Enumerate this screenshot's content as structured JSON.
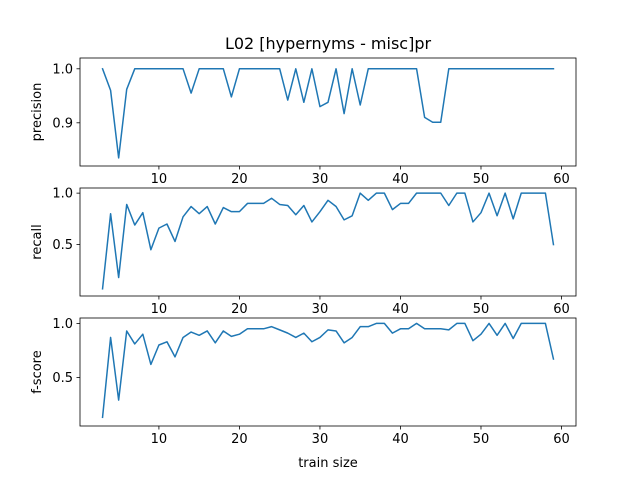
{
  "figure": {
    "title": "L02 [hypernyms - misc]pr",
    "xlabel": "train size",
    "line_color": "#1f77b4"
  },
  "chart_data": [
    {
      "type": "line",
      "ylabel": "precision",
      "xlim": [
        0.2,
        61.8
      ],
      "ylim": [
        0.82,
        1.02
      ],
      "xticks": [
        10,
        20,
        30,
        40,
        50,
        60
      ],
      "yticks": [
        0.9,
        1.0
      ],
      "ytick_labels": [
        "0.9",
        "1.0"
      ],
      "x": [
        3,
        4,
        5,
        6,
        7,
        8,
        9,
        10,
        11,
        12,
        13,
        14,
        15,
        16,
        17,
        18,
        19,
        20,
        21,
        22,
        23,
        24,
        25,
        26,
        27,
        28,
        29,
        30,
        31,
        32,
        33,
        34,
        35,
        36,
        37,
        38,
        39,
        40,
        41,
        42,
        43,
        44,
        45,
        46,
        47,
        48,
        49,
        50,
        51,
        52,
        53,
        54,
        55,
        56,
        57,
        58,
        59
      ],
      "y": [
        1.0,
        0.96,
        0.835,
        0.962,
        1.0,
        1.0,
        1.0,
        1.0,
        1.0,
        1.0,
        1.0,
        0.955,
        1.0,
        1.0,
        1.0,
        1.0,
        0.948,
        1.0,
        1.0,
        1.0,
        1.0,
        1.0,
        1.0,
        0.942,
        1.0,
        0.938,
        1.0,
        0.93,
        0.938,
        1.0,
        0.917,
        1.0,
        0.933,
        1.0,
        1.0,
        1.0,
        1.0,
        1.0,
        1.0,
        1.0,
        0.91,
        0.901,
        0.901,
        1.0,
        1.0,
        1.0,
        1.0,
        1.0,
        1.0,
        1.0,
        1.0,
        1.0,
        1.0,
        1.0,
        1.0,
        1.0,
        1.0
      ]
    },
    {
      "type": "line",
      "ylabel": "recall",
      "xlim": [
        0.2,
        61.8
      ],
      "ylim": [
        0.0,
        1.05
      ],
      "xticks": [
        10,
        20,
        30,
        40,
        50,
        60
      ],
      "yticks": [
        0.5,
        1.0
      ],
      "ytick_labels": [
        "0.5",
        "1.0"
      ],
      "x": [
        3,
        4,
        5,
        6,
        7,
        8,
        9,
        10,
        11,
        12,
        13,
        14,
        15,
        16,
        17,
        18,
        19,
        20,
        21,
        22,
        23,
        24,
        25,
        26,
        27,
        28,
        29,
        30,
        31,
        32,
        33,
        34,
        35,
        36,
        37,
        38,
        39,
        40,
        41,
        42,
        43,
        44,
        45,
        46,
        47,
        48,
        49,
        50,
        51,
        52,
        53,
        54,
        55,
        56,
        57,
        58,
        59
      ],
      "y": [
        0.07,
        0.8,
        0.18,
        0.89,
        0.69,
        0.81,
        0.45,
        0.66,
        0.7,
        0.53,
        0.77,
        0.87,
        0.8,
        0.87,
        0.7,
        0.86,
        0.82,
        0.82,
        0.9,
        0.9,
        0.9,
        0.95,
        0.89,
        0.88,
        0.79,
        0.88,
        0.72,
        0.82,
        0.93,
        0.87,
        0.74,
        0.78,
        1.0,
        0.93,
        1.0,
        1.0,
        0.84,
        0.9,
        0.9,
        1.0,
        1.0,
        1.0,
        1.0,
        0.88,
        1.0,
        1.0,
        0.72,
        0.81,
        1.0,
        0.78,
        1.0,
        0.75,
        1.0,
        1.0,
        1.0,
        1.0,
        0.5
      ]
    },
    {
      "type": "line",
      "ylabel": "f-score",
      "xlim": [
        0.2,
        61.8
      ],
      "ylim": [
        0.05,
        1.05
      ],
      "xticks": [
        10,
        20,
        30,
        40,
        50,
        60
      ],
      "yticks": [
        0.5,
        1.0
      ],
      "ytick_labels": [
        "0.5",
        "1.0"
      ],
      "x": [
        3,
        4,
        5,
        6,
        7,
        8,
        9,
        10,
        11,
        12,
        13,
        14,
        15,
        16,
        17,
        18,
        19,
        20,
        21,
        22,
        23,
        24,
        25,
        26,
        27,
        28,
        29,
        30,
        31,
        32,
        33,
        34,
        35,
        36,
        37,
        38,
        39,
        40,
        41,
        42,
        43,
        44,
        45,
        46,
        47,
        48,
        49,
        50,
        51,
        52,
        53,
        54,
        55,
        56,
        57,
        58,
        59
      ],
      "y": [
        0.13,
        0.87,
        0.29,
        0.93,
        0.81,
        0.9,
        0.62,
        0.8,
        0.83,
        0.69,
        0.87,
        0.92,
        0.89,
        0.93,
        0.82,
        0.93,
        0.88,
        0.9,
        0.95,
        0.95,
        0.95,
        0.97,
        0.94,
        0.91,
        0.87,
        0.91,
        0.83,
        0.87,
        0.94,
        0.93,
        0.82,
        0.87,
        0.97,
        0.97,
        1.0,
        1.0,
        0.91,
        0.95,
        0.95,
        1.0,
        0.95,
        0.95,
        0.95,
        0.94,
        1.0,
        1.0,
        0.84,
        0.9,
        1.0,
        0.89,
        1.0,
        0.86,
        1.0,
        1.0,
        1.0,
        1.0,
        0.67
      ]
    }
  ]
}
